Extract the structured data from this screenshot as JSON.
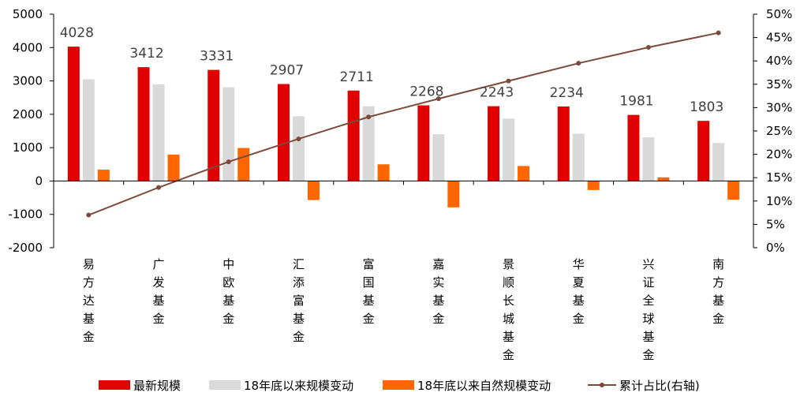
{
  "chart_data": {
    "type": "bar",
    "categories": [
      "易方达基金",
      "广发基金",
      "中欧基金",
      "汇添富基金",
      "富国基金",
      "嘉实基金",
      "景顺长城基金",
      "华夏基金",
      "兴证全球基金",
      "南方基金"
    ],
    "series": [
      {
        "name": "最新规模",
        "type": "bar",
        "axis": "left",
        "color": "#e00000",
        "values": [
          4028,
          3412,
          3331,
          2907,
          2711,
          2268,
          2243,
          2234,
          1981,
          1803
        ]
      },
      {
        "name": "18年底以来规模变动",
        "type": "bar",
        "axis": "left",
        "color": "#d9d9d9",
        "values": [
          3050,
          2900,
          2810,
          1940,
          2240,
          1400,
          1870,
          1420,
          1310,
          1140
        ]
      },
      {
        "name": "18年底以来自然规模变动",
        "type": "bar",
        "axis": "left",
        "color": "#ff6600",
        "values": [
          340,
          790,
          990,
          -570,
          500,
          -790,
          450,
          -270,
          110,
          -560
        ]
      },
      {
        "name": "累计占比(右轴)",
        "type": "line",
        "axis": "right",
        "color": "#7b4a3a",
        "values": [
          7.0,
          12.9,
          18.4,
          23.3,
          28.0,
          31.9,
          35.7,
          39.5,
          42.9,
          46.0
        ]
      }
    ],
    "data_labels": [
      "4028",
      "3412",
      "3331",
      "2907",
      "2711",
      "2268",
      "2243",
      "2234",
      "1981",
      "1803"
    ],
    "y_left": {
      "min": -2000,
      "max": 5000,
      "ticks": [
        "5000",
        "4000",
        "3000",
        "2000",
        "1000",
        "0",
        "-1000",
        "-2000"
      ]
    },
    "y_right": {
      "min": 0,
      "max": 50,
      "ticks": [
        "50%",
        "45%",
        "40%",
        "35%",
        "30%",
        "25%",
        "20%",
        "15%",
        "10%",
        "5%",
        "0%"
      ]
    },
    "legend_position": "bottom"
  }
}
